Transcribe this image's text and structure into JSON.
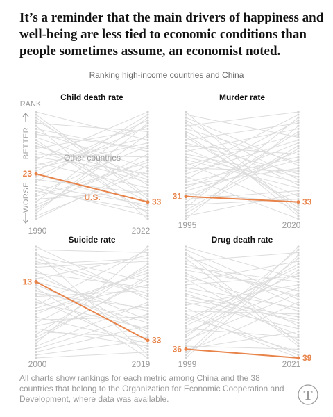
{
  "headline": "It’s a reminder that the main drivers of happiness and well-being are less tied to economic conditions than people sometimes assume, an economist noted.",
  "subtitle": "Ranking high-income countries and China",
  "axis_annotations": {
    "rank": "RANK",
    "better": "BETTER",
    "worse": "WORSE",
    "other_countries": "Other countries",
    "us": "U.S."
  },
  "footnote": "All charts show rankings for each metric among China and the 38 countries that belong to the Organization for Economic Cooperation and Development, where data was available.",
  "colors": {
    "highlight": "#e8834a",
    "background_lines": "#dcdcdc",
    "text": "#121212",
    "muted": "#9a9a9a"
  },
  "chart_data": [
    {
      "type": "line",
      "title": "Child death rate",
      "x": [
        "1990",
        "2022"
      ],
      "ylim": [
        1,
        39
      ],
      "y_direction": "rank, 1 = better at top",
      "series": [
        {
          "name": "U.S.",
          "values": [
            23,
            33
          ]
        }
      ],
      "background_series_label": "Other countries"
    },
    {
      "type": "line",
      "title": "Murder rate",
      "x": [
        "1995",
        "2020"
      ],
      "ylim": [
        1,
        39
      ],
      "y_direction": "rank, 1 = better at top",
      "series": [
        {
          "name": "U.S.",
          "values": [
            31,
            33
          ]
        }
      ]
    },
    {
      "type": "line",
      "title": "Suicide rate",
      "x": [
        "2000",
        "2019"
      ],
      "ylim": [
        1,
        39
      ],
      "y_direction": "rank, 1 = better at top",
      "series": [
        {
          "name": "U.S.",
          "values": [
            13,
            33
          ]
        }
      ]
    },
    {
      "type": "line",
      "title": "Drug death rate",
      "x": [
        "1999",
        "2021"
      ],
      "ylim": [
        1,
        39
      ],
      "y_direction": "rank, 1 = better at top",
      "series": [
        {
          "name": "U.S.",
          "values": [
            36,
            39
          ]
        }
      ]
    }
  ]
}
